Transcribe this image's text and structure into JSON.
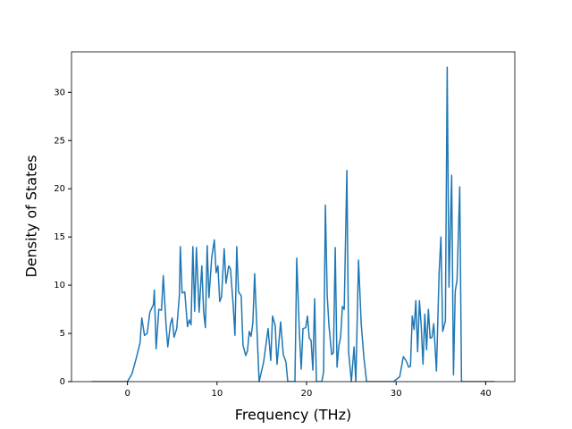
{
  "chart_data": {
    "type": "line",
    "x_label": "Frequency (THz)",
    "y_label": "Density of States",
    "xlim": [
      -6.25,
      43.25
    ],
    "ylim": [
      0,
      34.2
    ],
    "xticks": [
      0,
      10,
      20,
      30,
      40
    ],
    "yticks": [
      0,
      5,
      10,
      15,
      20,
      25,
      30
    ],
    "series": [
      {
        "color": "#1f77b4",
        "x": [
          -4,
          0,
          0.5,
          1,
          1.4,
          1.6,
          1.9,
          2.2,
          2.5,
          2.9,
          3.0,
          3.2,
          3.5,
          3.8,
          4.0,
          4.3,
          4.5,
          4.8,
          5.0,
          5.2,
          5.5,
          5.8,
          5.9,
          6.1,
          6.4,
          6.7,
          6.9,
          7.1,
          7.3,
          7.5,
          7.7,
          8.0,
          8.3,
          8.5,
          8.7,
          8.9,
          9.1,
          9.4,
          9.7,
          9.9,
          10.1,
          10.3,
          10.5,
          10.8,
          11.0,
          11.3,
          11.5,
          11.8,
          12.0,
          12.2,
          12.4,
          12.7,
          12.9,
          13.2,
          13.4,
          13.6,
          13.8,
          14.0,
          14.2,
          14.7,
          15.2,
          15.7,
          16.0,
          16.2,
          16.5,
          16.7,
          17.1,
          17.4,
          17.7,
          17.9,
          18.7,
          18.9,
          19.2,
          19.4,
          19.6,
          19.9,
          20.1,
          20.3,
          20.5,
          20.7,
          20.9,
          21.1,
          21.7,
          21.9,
          22.1,
          22.3,
          22.5,
          22.8,
          23.0,
          23.2,
          23.4,
          23.6,
          23.8,
          24.0,
          24.2,
          24.5,
          24.7,
          25.0,
          25.3,
          25.5,
          25.8,
          26.1,
          26.4,
          26.7,
          29.7,
          30.4,
          30.8,
          31.1,
          31.4,
          31.6,
          31.8,
          32.0,
          32.2,
          32.4,
          32.6,
          32.8,
          33.0,
          33.2,
          33.4,
          33.6,
          33.8,
          34.0,
          34.2,
          34.5,
          34.8,
          35.0,
          35.2,
          35.5,
          35.7,
          35.9,
          36.2,
          36.4,
          36.6,
          36.8,
          37.1,
          37.3,
          41
        ],
        "values": [
          0,
          0,
          0.8,
          2.5,
          4,
          6.6,
          4.8,
          5,
          7.2,
          8,
          9.5,
          3.4,
          7.5,
          7.4,
          11,
          6,
          3.6,
          6,
          6.6,
          4.6,
          5.5,
          9,
          14,
          9.2,
          9.3,
          5.7,
          6.4,
          5.9,
          14,
          7.3,
          13.9,
          7.2,
          12,
          7.3,
          5.6,
          14.1,
          8.7,
          12.8,
          14.7,
          11.3,
          12,
          8.3,
          8.8,
          13.8,
          10.2,
          12,
          11.7,
          8,
          4.8,
          14,
          9.3,
          8.9,
          3.8,
          2.7,
          3.2,
          5.2,
          4.7,
          6.1,
          11.2,
          0,
          2,
          5.5,
          2.2,
          6.8,
          5.8,
          1.8,
          6.2,
          2.8,
          2,
          0,
          0,
          12.8,
          5,
          1.3,
          5.5,
          5.6,
          6.8,
          4.5,
          4.3,
          1.2,
          8.6,
          0,
          0,
          1,
          18.3,
          9,
          5.8,
          2.8,
          3,
          13.9,
          1.5,
          3.7,
          4.6,
          7.8,
          7.5,
          21.9,
          3,
          0,
          3.6,
          0,
          12.6,
          6,
          2.5,
          0,
          0,
          0.5,
          2.6,
          2.2,
          1.5,
          1.6,
          6.8,
          5.4,
          8.4,
          3.1,
          8.4,
          5.8,
          1.8,
          7,
          3.3,
          7.5,
          4.5,
          4.6,
          6,
          1.1,
          11.3,
          15,
          5.2,
          6.3,
          32.6,
          9.8,
          21.4,
          0.7,
          9.4,
          10.5,
          20.2,
          0,
          0
        ]
      }
    ]
  }
}
